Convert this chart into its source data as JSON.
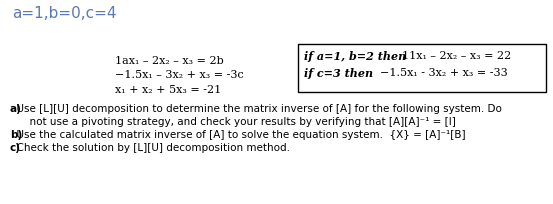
{
  "title": "a=1,b=0,c=4",
  "title_fontsize": 11,
  "title_color": "#5a7ab5",
  "bg_color": "#ffffff",
  "left_equations": [
    "1ax₁ – 2x₂ – x₃ = 2b",
    "−1.5x₁ – 3x₂ + x₃ = -3c",
    "x₁ + x₂ + 5x₃ = -21"
  ],
  "box_line1_bold": "if a=1, b=2 then ",
  "box_line1_eq": "11x₁ – 2x₂ – x₃ = 22",
  "box_line2_bold": "if c=3 then",
  "box_line2_eq": "    −1.5x₁ - 3x₂ + x₃ = -33",
  "part_a_label": "a)",
  "part_a_text": "  Use [L][U] decomposition to determine the matrix inverse of [A] for the following system. Do",
  "part_a2": "      not use a pivoting strategy, and check your results by verifying that [A][A]⁻¹ = [I]",
  "part_b_label": "b)",
  "part_b_text": "  Use the calculated matrix inverse of [A] to solve the equation system.  {X} = [A]⁻¹[B]",
  "part_c_label": "c)",
  "part_c_text": "  Check the solution by [L][U] decomposition method.",
  "text_color": "#000000",
  "box_color": "#000000",
  "eq_font": "DejaVu Serif",
  "body_font": "DejaVu Sans"
}
